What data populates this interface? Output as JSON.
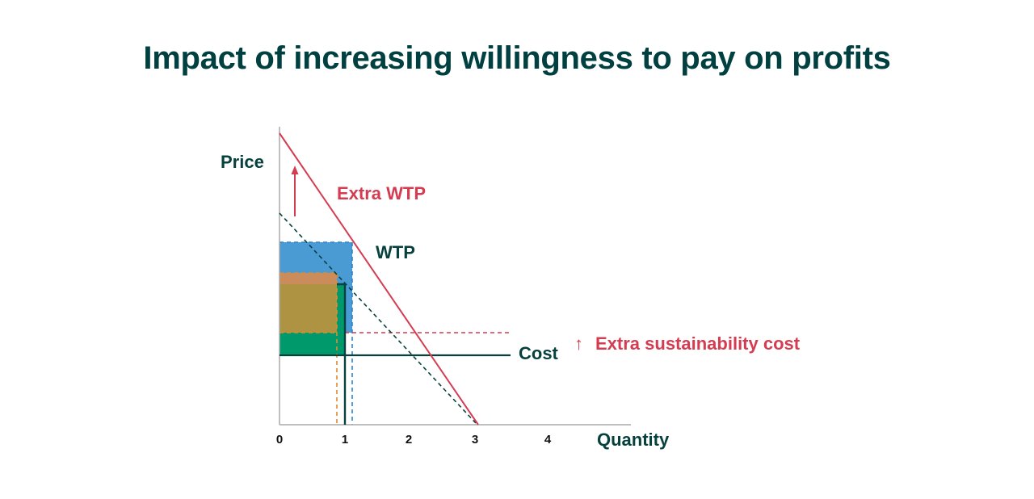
{
  "title": "Impact of increasing willingness to pay on profits",
  "axes": {
    "y_label": "Price",
    "x_label": "Quantity",
    "x_ticks": [
      "0",
      "1",
      "2",
      "3",
      "4"
    ]
  },
  "labels": {
    "extra_wtp": "Extra WTP",
    "wtp": "WTP",
    "cost": "Cost",
    "extra_cost": "Extra sustainability cost",
    "up_arrow": "↑"
  },
  "colors": {
    "title": "#004040",
    "dark": "#06413e",
    "red": "#d43d51",
    "blue": "#4a9ad4",
    "orange": "#e08a2e",
    "green": "#00996b",
    "olive": "#ae9442"
  }
}
